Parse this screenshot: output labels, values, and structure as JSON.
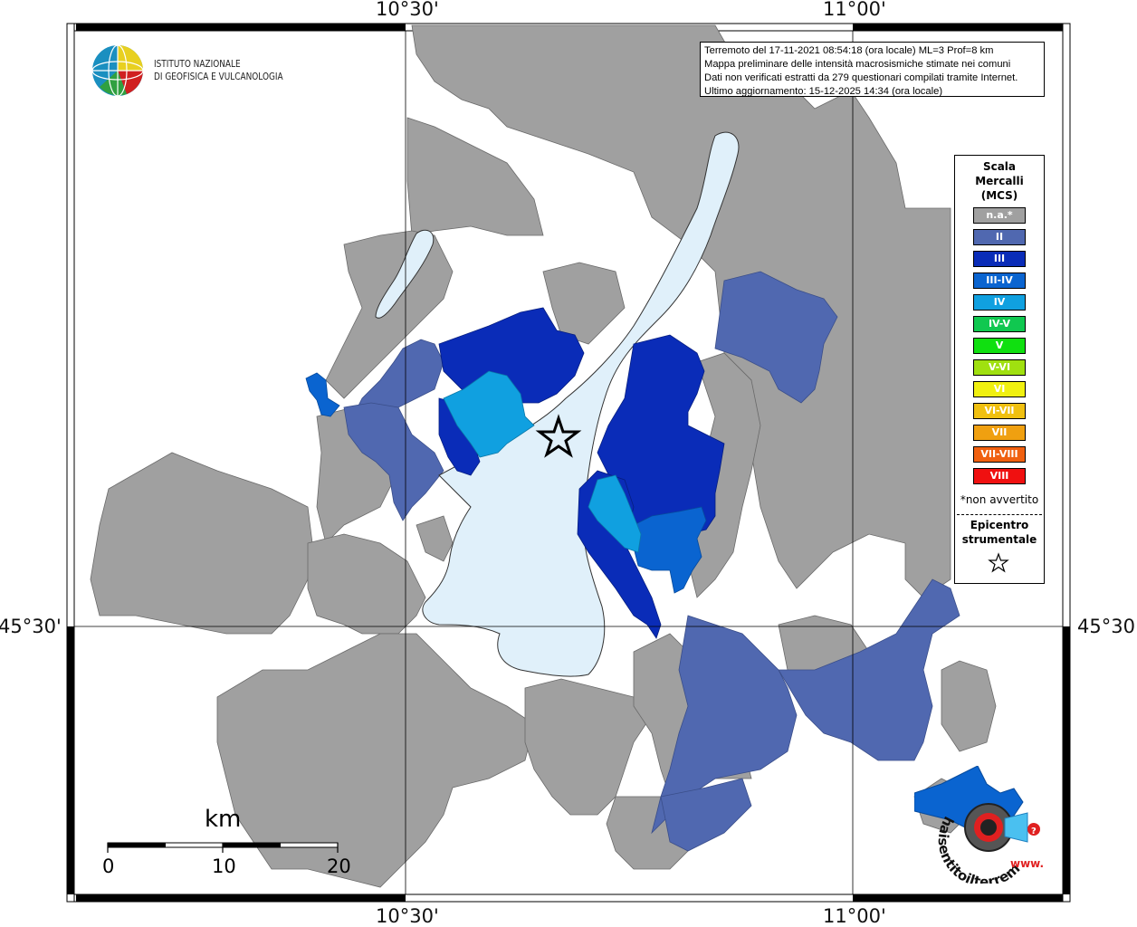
{
  "coords": {
    "top_left_lon": "10°30'",
    "top_right_lon": "11°00'",
    "bottom_left_lon": "10°30'",
    "bottom_right_lon": "11°00'",
    "left_lat": "45°30'",
    "right_lat": "45°30'"
  },
  "logo": {
    "line1": "ISTITUTO NAZIONALE",
    "line2": "DI GEOFISICA E VULCANOLOGIA"
  },
  "info": {
    "line1": "Terremoto del 17-11-2021 08:54:18 (ora locale) ML=3 Prof=8 km",
    "line2": "Mappa preliminare delle intensità macrosismiche stimate nei comuni",
    "line3": "Dati non verificati estratti da 279 questionari compilati tramite Internet.",
    "line4": "Ultimo aggiornamento: 15-12-2025 14:34 (ora locale)"
  },
  "legend": {
    "title_line1": "Scala",
    "title_line2": "Mercalli",
    "title_line3": "(MCS)",
    "items": [
      {
        "label": "n.a.*",
        "color": "#a0a0a0"
      },
      {
        "label": "II",
        "color": "#5068b0"
      },
      {
        "label": "III",
        "color": "#0a2cb8"
      },
      {
        "label": "III-IV",
        "color": "#0a64d0"
      },
      {
        "label": "IV",
        "color": "#10a0e0"
      },
      {
        "label": "IV-V",
        "color": "#10c850"
      },
      {
        "label": "V",
        "color": "#10e010"
      },
      {
        "label": "V-VI",
        "color": "#a0e010"
      },
      {
        "label": "VI",
        "color": "#f0f010"
      },
      {
        "label": "VI-VII",
        "color": "#f0c010"
      },
      {
        "label": "VII",
        "color": "#f0a010"
      },
      {
        "label": "VII-VIII",
        "color": "#f06010"
      },
      {
        "label": "VIII",
        "color": "#f01010"
      }
    ],
    "na_note": "*non avvertito",
    "epicentre_line1": "Epicentro",
    "epicentre_line2": "strumentale"
  },
  "scalebar": {
    "unit": "km",
    "ticks": [
      "0",
      "10",
      "20"
    ]
  },
  "hst_logo": {
    "text": "haisentitoilterremoto.it",
    "url_text": "www."
  },
  "colors": {
    "lake": "#e0f0fa",
    "na": "#a0a0a0",
    "ii": "#5068b0",
    "iii": "#0a2cb8",
    "iii_iv": "#0a64d0",
    "iv": "#10a0e0"
  }
}
